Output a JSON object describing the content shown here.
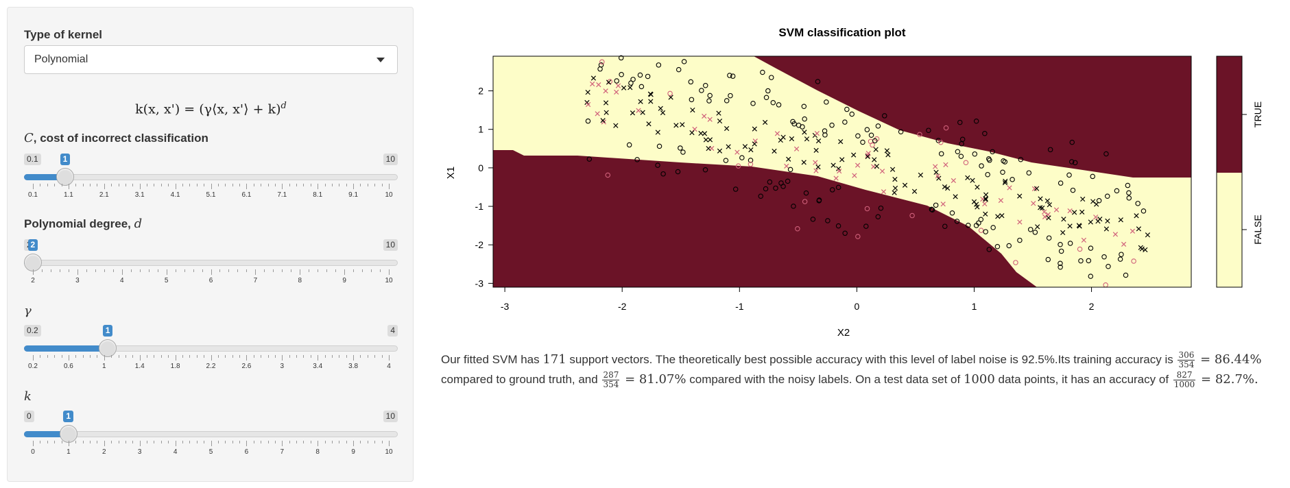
{
  "sidebar": {
    "kernel_label": "Type of kernel",
    "kernel_value": "Polynomial",
    "formula": "k(x, x') = (γ⟨x, x'⟩ + k)",
    "formula_exp": "d",
    "sliders": [
      {
        "sym": "C",
        "rest": ", cost of incorrect classification",
        "min": 0.1,
        "max": 10,
        "value": 1,
        "min_label": "0.1",
        "max_label": "10",
        "value_label": "1",
        "ticks": [
          "0.1",
          "1.1",
          "2.1",
          "3.1",
          "4.1",
          "5.1",
          "6.1",
          "7.1",
          "8.1",
          "9.1",
          "10"
        ],
        "last_tick_value": 10
      },
      {
        "sym": "d",
        "rest": "Polynomial degree, ",
        "min": 2,
        "max": 10,
        "value": 2,
        "min_label": "2",
        "max_label": "10",
        "value_label": "2",
        "ticks": [
          "2",
          "3",
          "4",
          "5",
          "6",
          "7",
          "8",
          "9",
          "10"
        ],
        "last_tick_value": 10
      },
      {
        "sym": "γ",
        "rest": "",
        "min": 0.2,
        "max": 4,
        "value": 1,
        "min_label": "0.2",
        "max_label": "4",
        "value_label": "1",
        "ticks": [
          "0.2",
          "0.6",
          "1",
          "1.4",
          "1.8",
          "2.2",
          "2.6",
          "3",
          "3.4",
          "3.8",
          "4"
        ],
        "last_tick_value": 4
      },
      {
        "sym": "k",
        "rest": "",
        "min": 0,
        "max": 10,
        "value": 1,
        "min_label": "0",
        "max_label": "10",
        "value_label": "1",
        "ticks": [
          "0",
          "1",
          "2",
          "3",
          "4",
          "5",
          "6",
          "7",
          "8",
          "9",
          "10"
        ],
        "last_tick_value": 10
      }
    ]
  },
  "plot": {
    "title": "SVM classification plot",
    "xlabel": "X2",
    "ylabel": "X1",
    "x_ticks": [
      "-3",
      "-2",
      "-1",
      "0",
      "1",
      "2"
    ],
    "y_ticks": [
      "2",
      "1",
      "0",
      "-1",
      "-2",
      "-3"
    ],
    "legend_true": "TRUE",
    "legend_false": "FALSE",
    "colors": {
      "true_region": "#6b1327",
      "false_region": "#fdfdc8",
      "class_black": "#000000",
      "class_red": "#d0607a"
    }
  },
  "chart_data": {
    "type": "scatter",
    "title": "SVM classification plot",
    "xlabel": "X2",
    "ylabel": "X1",
    "xlim": [
      -3.1,
      2.85
    ],
    "ylim": [
      -3.1,
      2.9
    ],
    "legend": [
      "TRUE",
      "FALSE"
    ],
    "legend_placement": "right",
    "grid": false,
    "markers": {
      "o": "data point",
      "x": "support vector"
    }
  },
  "summary": {
    "p1": "Our fitted SVM has ",
    "n_sv": "171",
    "p2": " support vectors. The theoretically best possible accuracy with this level of label noise is 92.5%.Its training accuracy is ",
    "f1_num": "306",
    "f1_den": "354",
    "eq1": " = 86.44%",
    "p3": " compared to ground truth, and ",
    "f2_num": "287",
    "f2_den": "354",
    "eq2": " = 81.07%",
    "p4": " compared with the noisy labels. On a test data set of ",
    "n_test": "1000",
    "p5": " data points, it has an accuracy of ",
    "f3_num": "827",
    "f3_den": "1000",
    "eq3": " = 82.7%."
  }
}
